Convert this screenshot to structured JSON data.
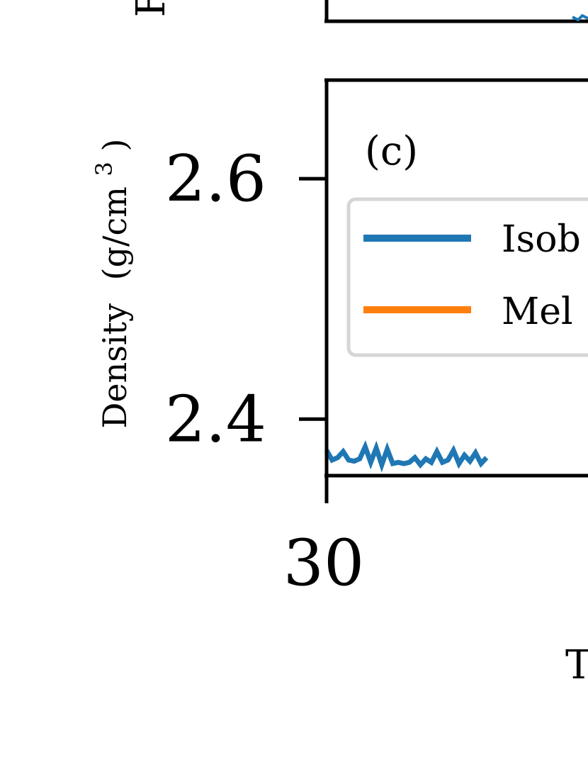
{
  "chart_data": {
    "type": "line",
    "panel_label": "(c)",
    "ylabel": "Density (g/cm³)",
    "ylabel_text": "Density",
    "ylabel_unit_open": "(g/cm",
    "ylabel_unit_sup": "3",
    "ylabel_unit_close": ")",
    "upper_panel_ylabel_fragment": "F",
    "xlabel_fragment": "T",
    "x_ticks": [
      {
        "value": 30,
        "label": "30"
      }
    ],
    "y_ticks": [
      {
        "value": 2.4,
        "label": "2.4"
      },
      {
        "value": 2.6,
        "label": "2.6"
      }
    ],
    "xlim": [
      30,
      44
    ],
    "ylim": [
      2.353,
      2.682
    ],
    "legend": {
      "placement": "upper-left",
      "entries": [
        {
          "label": "Isob",
          "color": "#1f77b4"
        },
        {
          "label": "Mel",
          "color": "#ff7f0e"
        }
      ]
    },
    "series": [
      {
        "name": "Isob",
        "color": "#1f77b4",
        "x": [
          30.0,
          30.2,
          30.4,
          30.6,
          30.8,
          31.0,
          31.2,
          31.4,
          31.6,
          31.8,
          32.0,
          32.2,
          32.4,
          32.6,
          32.8,
          33.0,
          33.2,
          33.4,
          33.6,
          33.8,
          34.0,
          34.2,
          34.4,
          34.6,
          34.8,
          35.0,
          35.2,
          35.4,
          35.6,
          35.8
        ],
        "values": [
          2.374,
          2.366,
          2.368,
          2.373,
          2.366,
          2.365,
          2.367,
          2.377,
          2.364,
          2.376,
          2.362,
          2.375,
          2.363,
          2.364,
          2.363,
          2.364,
          2.368,
          2.362,
          2.367,
          2.364,
          2.373,
          2.364,
          2.366,
          2.374,
          2.363,
          2.37,
          2.365,
          2.372,
          2.363,
          2.368
        ]
      }
    ]
  }
}
